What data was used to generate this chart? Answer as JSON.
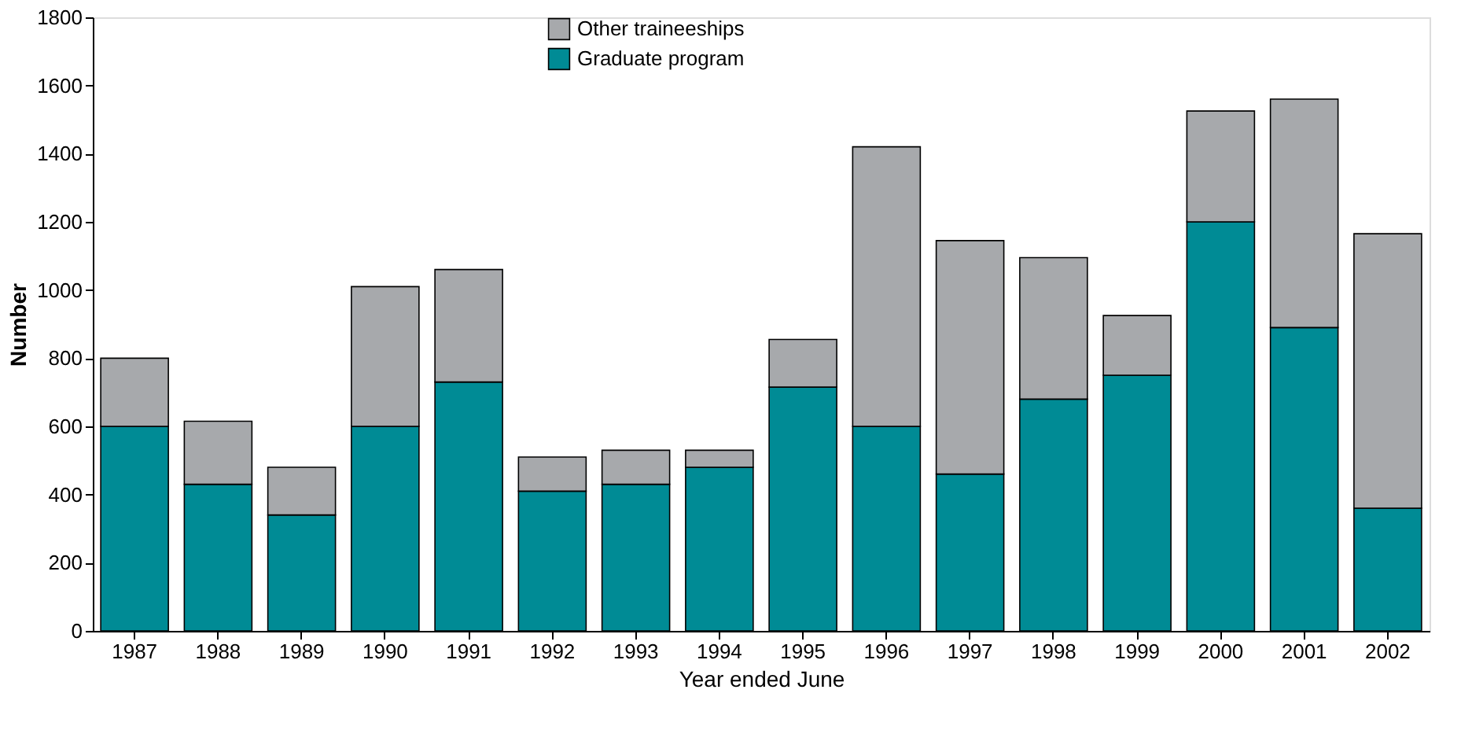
{
  "chart_data": {
    "type": "bar",
    "stacked": true,
    "xlabel": "Year ended June",
    "ylabel": "Number",
    "categories": [
      "1987",
      "1988",
      "1989",
      "1990",
      "1991",
      "1992",
      "1993",
      "1994",
      "1995",
      "1996",
      "1997",
      "1998",
      "1999",
      "2000",
      "2001",
      "2002"
    ],
    "series": [
      {
        "name": "Graduate program",
        "color": "#008b95",
        "values": [
          600,
          430,
          340,
          600,
          730,
          410,
          430,
          480,
          715,
          600,
          460,
          680,
          750,
          1200,
          890,
          360
        ]
      },
      {
        "name": "Other traineeships",
        "color": "#a7a9ac",
        "values": [
          200,
          185,
          140,
          410,
          330,
          100,
          100,
          50,
          140,
          820,
          685,
          415,
          175,
          325,
          670,
          805
        ]
      }
    ],
    "ylim": [
      0,
      1800
    ],
    "yticks": [
      0,
      200,
      400,
      600,
      800,
      1000,
      1200,
      1400,
      1600,
      1800
    ],
    "grid": false,
    "legend": "top"
  }
}
